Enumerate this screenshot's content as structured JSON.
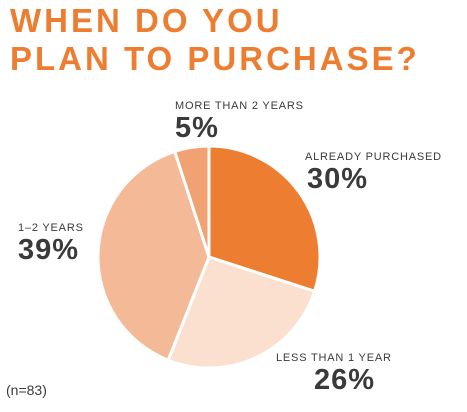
{
  "title_line1": "WHEN DO YOU",
  "title_line2": "PLAN TO PURCHASE?",
  "sample_note": "(n=83)",
  "colors": {
    "title": "#ED7D31",
    "text": "#3a3a3a"
  },
  "chart_data": {
    "type": "pie",
    "title": "WHEN DO YOU PLAN TO PURCHASE?",
    "slices": [
      {
        "label": "ALREADY PURCHASED",
        "value": 30,
        "display": "30%",
        "color": "#ED7D31"
      },
      {
        "label": "LESS THAN 1 YEAR",
        "value": 26,
        "display": "26%",
        "color": "#FBE0D0"
      },
      {
        "label": "1–2 YEARS",
        "value": 39,
        "display": "39%",
        "color": "#F4BA98"
      },
      {
        "label": "MORE THAN 2 YEARS",
        "value": 5,
        "display": "5%",
        "color": "#F1A272"
      }
    ],
    "start": "12 o'clock",
    "direction": "clockwise",
    "legend": "none",
    "note": "(n=83)"
  }
}
